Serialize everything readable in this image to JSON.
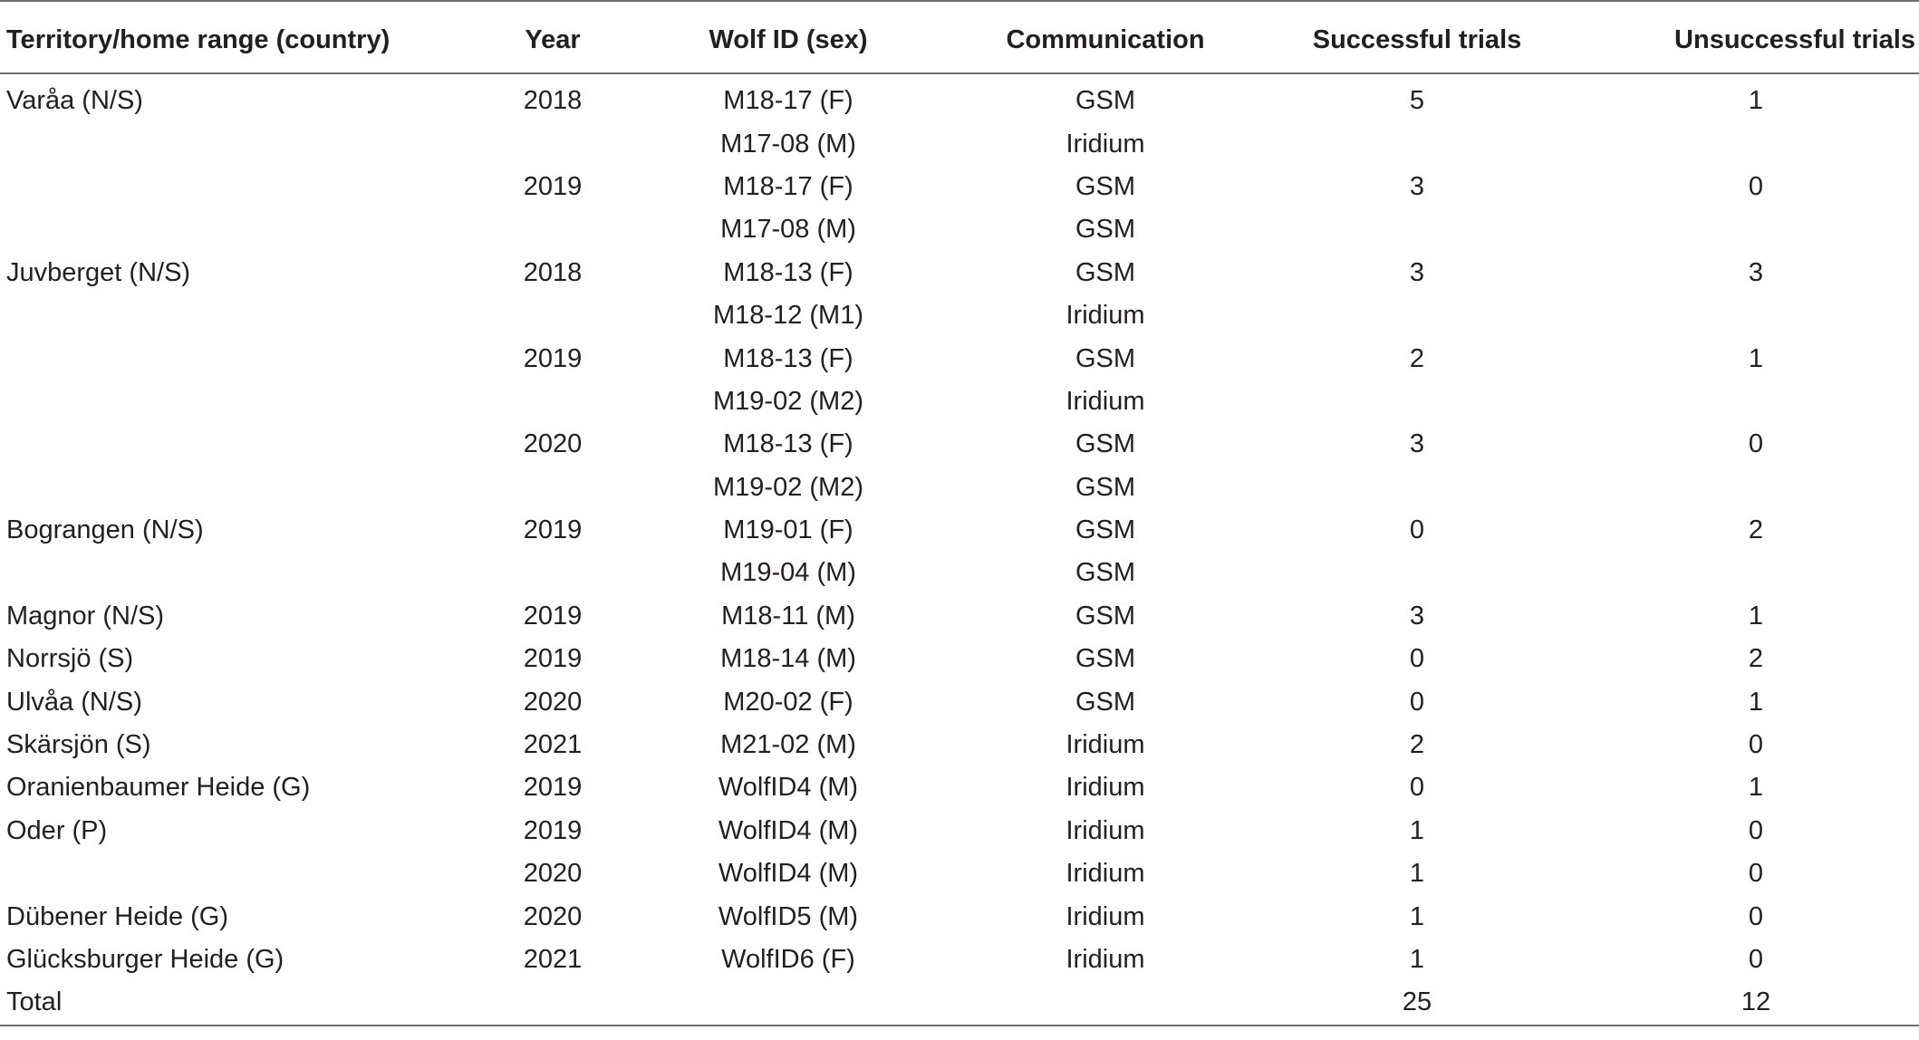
{
  "table": {
    "headers": [
      "Territory/home range (country)",
      "Year",
      "Wolf ID (sex)",
      "Communication",
      "Successful trials",
      "Unsuccessful trials"
    ],
    "rows": [
      [
        "Varåa (N/S)",
        "2018",
        "M18-17 (F)",
        "GSM",
        "5",
        "1"
      ],
      [
        "",
        "",
        "M17-08 (M)",
        "Iridium",
        "",
        ""
      ],
      [
        "",
        "2019",
        "M18-17 (F)",
        "GSM",
        "3",
        "0"
      ],
      [
        "",
        "",
        "M17-08 (M)",
        "GSM",
        "",
        ""
      ],
      [
        "Juvberget (N/S)",
        "2018",
        "M18-13 (F)",
        "GSM",
        "3",
        "3"
      ],
      [
        "",
        "",
        "M18-12 (M1)",
        "Iridium",
        "",
        ""
      ],
      [
        "",
        "2019",
        "M18-13 (F)",
        "GSM",
        "2",
        "1"
      ],
      [
        "",
        "",
        "M19-02 (M2)",
        "Iridium",
        "",
        ""
      ],
      [
        "",
        "2020",
        "M18-13 (F)",
        "GSM",
        "3",
        "0"
      ],
      [
        "",
        "",
        "M19-02 (M2)",
        "GSM",
        "",
        ""
      ],
      [
        "Bograngen (N/S)",
        "2019",
        "M19-01 (F)",
        "GSM",
        "0",
        "2"
      ],
      [
        "",
        "",
        "M19-04 (M)",
        "GSM",
        "",
        ""
      ],
      [
        "Magnor (N/S)",
        "2019",
        "M18-11 (M)",
        "GSM",
        "3",
        "1"
      ],
      [
        "Norrsjö (S)",
        "2019",
        "M18-14 (M)",
        "GSM",
        "0",
        "2"
      ],
      [
        "Ulvåa (N/S)",
        "2020",
        "M20-02 (F)",
        "GSM",
        "0",
        "1"
      ],
      [
        "Skärsjön (S)",
        "2021",
        "M21-02 (M)",
        "Iridium",
        "2",
        "0"
      ],
      [
        "Oranienbaumer Heide (G)",
        "2019",
        "WolfID4 (M)",
        "Iridium",
        "0",
        "1"
      ],
      [
        "Oder (P)",
        "2019",
        "WolfID4 (M)",
        "Iridium",
        "1",
        "0"
      ],
      [
        "",
        "2020",
        "WolfID4 (M)",
        "Iridium",
        "1",
        "0"
      ],
      [
        "Dübener Heide (G)",
        "2020",
        "WolfID5 (M)",
        "Iridium",
        "1",
        "0"
      ],
      [
        "Glücksburger Heide (G)",
        "2021",
        "WolfID6 (F)",
        "Iridium",
        "1",
        "0"
      ]
    ],
    "total": [
      "Total",
      "",
      "",
      "",
      "25",
      "12"
    ]
  }
}
